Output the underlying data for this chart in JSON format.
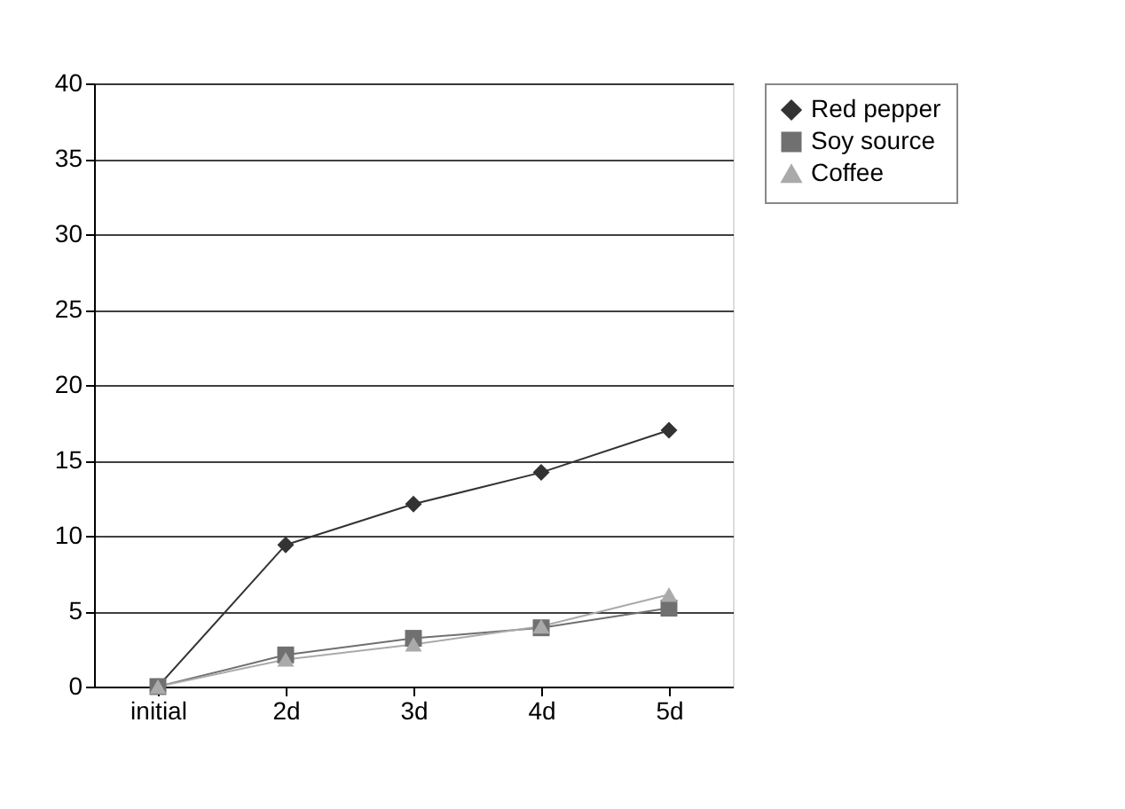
{
  "chart_data": {
    "type": "line",
    "categories": [
      "initial",
      "2d",
      "3d",
      "4d",
      "5d"
    ],
    "series": [
      {
        "name": "Red pepper",
        "color": "#333333",
        "marker": "diamond",
        "values": [
          0,
          9.4,
          12.1,
          14.2,
          17.0
        ]
      },
      {
        "name": "Soy source",
        "color": "#707070",
        "marker": "square",
        "values": [
          0,
          2.1,
          3.2,
          3.9,
          5.2
        ]
      },
      {
        "name": "Coffee",
        "color": "#aaaaaa",
        "marker": "triangle",
        "values": [
          0,
          1.8,
          2.8,
          4.0,
          6.1
        ]
      }
    ],
    "ylim": [
      0,
      40
    ],
    "yticks": [
      0,
      5,
      10,
      15,
      20,
      25,
      30,
      35,
      40
    ],
    "grid": "y",
    "legend": "right"
  }
}
